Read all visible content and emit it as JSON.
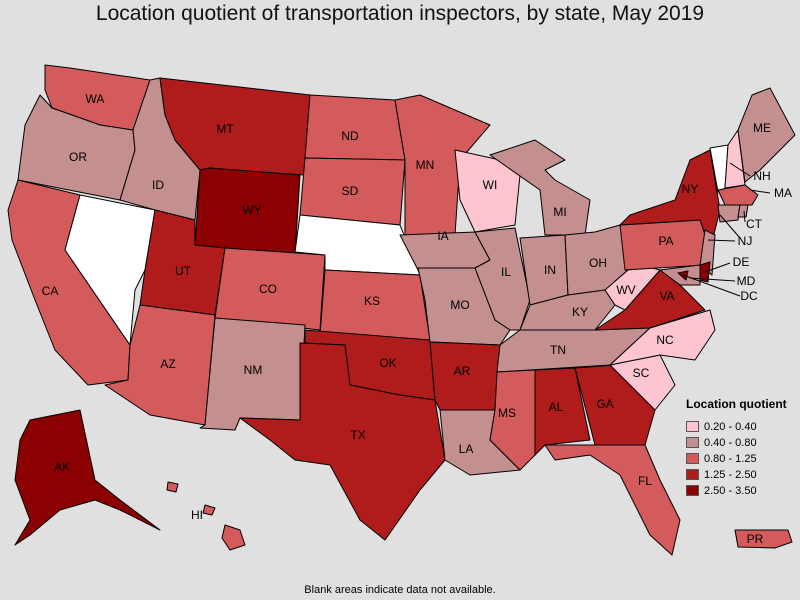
{
  "title": "Location quotient of transportation inspectors, by state, May 2019",
  "legend": {
    "title": "Location quotient",
    "items": [
      {
        "label": "0.20 - 0.40",
        "color": "#fcc5cf"
      },
      {
        "label": "0.40 - 0.80",
        "color": "#c38f8f"
      },
      {
        "label": "0.80 - 1.25",
        "color": "#d45b5b"
      },
      {
        "label": "1.25 - 2.50",
        "color": "#b01c1c"
      },
      {
        "label": "2.50 - 3.50",
        "color": "#8b0000"
      }
    ]
  },
  "na_color": "#ffffff",
  "footnote": "Blank areas indicate data not available.",
  "states": [
    {
      "code": "WA",
      "category": 2
    },
    {
      "code": "OR",
      "category": 1
    },
    {
      "code": "CA",
      "category": 2
    },
    {
      "code": "NV",
      "category": null
    },
    {
      "code": "ID",
      "category": 1
    },
    {
      "code": "MT",
      "category": 3
    },
    {
      "code": "WY",
      "category": 4
    },
    {
      "code": "UT",
      "category": 3
    },
    {
      "code": "AZ",
      "category": 2
    },
    {
      "code": "CO",
      "category": 2
    },
    {
      "code": "NM",
      "category": 1
    },
    {
      "code": "ND",
      "category": 2
    },
    {
      "code": "SD",
      "category": 2
    },
    {
      "code": "NE",
      "category": null
    },
    {
      "code": "KS",
      "category": 2
    },
    {
      "code": "OK",
      "category": 3
    },
    {
      "code": "TX",
      "category": 3
    },
    {
      "code": "MN",
      "category": 2
    },
    {
      "code": "IA",
      "category": 1
    },
    {
      "code": "MO",
      "category": 1
    },
    {
      "code": "AR",
      "category": 3
    },
    {
      "code": "LA",
      "category": 1
    },
    {
      "code": "WI",
      "category": 0
    },
    {
      "code": "IL",
      "category": 1
    },
    {
      "code": "MI",
      "category": 1
    },
    {
      "code": "IN",
      "category": 1
    },
    {
      "code": "OH",
      "category": 1
    },
    {
      "code": "KY",
      "category": 1
    },
    {
      "code": "TN",
      "category": 1
    },
    {
      "code": "MS",
      "category": 2
    },
    {
      "code": "AL",
      "category": 3
    },
    {
      "code": "GA",
      "category": 3
    },
    {
      "code": "FL",
      "category": 2
    },
    {
      "code": "SC",
      "category": 0
    },
    {
      "code": "NC",
      "category": 0
    },
    {
      "code": "VA",
      "category": 3
    },
    {
      "code": "WV",
      "category": 0
    },
    {
      "code": "PA",
      "category": 2
    },
    {
      "code": "NY",
      "category": 3
    },
    {
      "code": "VT",
      "category": null
    },
    {
      "code": "NH",
      "category": 0
    },
    {
      "code": "ME",
      "category": 1
    },
    {
      "code": "MA",
      "category": 2
    },
    {
      "code": "RI",
      "category": 1
    },
    {
      "code": "CT",
      "category": 1
    },
    {
      "code": "NJ",
      "category": 1
    },
    {
      "code": "DE",
      "category": 4
    },
    {
      "code": "MD",
      "category": 1
    },
    {
      "code": "DC",
      "category": 4
    },
    {
      "code": "AK",
      "category": 4
    },
    {
      "code": "HI",
      "category": 2
    },
    {
      "code": "PR",
      "category": 2
    }
  ]
}
